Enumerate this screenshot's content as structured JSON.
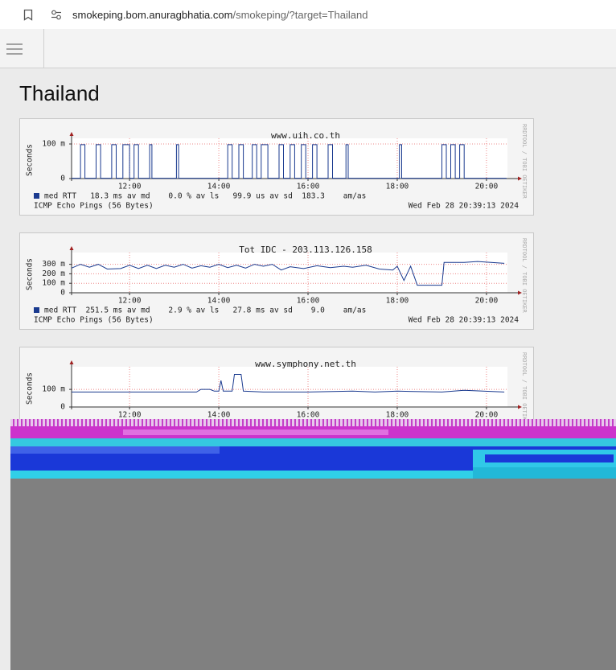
{
  "address": {
    "host": "smokeping.bom.anuragbhatia.com",
    "path": "/smokeping/?target=Thailand"
  },
  "heading": "Thailand",
  "graphs": [
    {
      "type": "line",
      "title": "www.uih.co.th",
      "ylabel": "Seconds",
      "color": "#1a3a8f",
      "grid": true,
      "ylim": [
        0,
        107
      ],
      "yticks": [
        0,
        {
          "value": 100,
          "label": "100 m"
        }
      ],
      "xlim": [
        10.7,
        20.47
      ],
      "xticks": [
        {
          "value": 12,
          "label": "12:00"
        },
        {
          "value": 14,
          "label": "14:00"
        },
        {
          "value": 16,
          "label": "16:00"
        },
        {
          "value": 18,
          "label": "18:00"
        },
        {
          "value": 20,
          "label": "20:00"
        }
      ],
      "x": [
        10.7,
        10.9,
        10.9,
        11.0,
        11.0,
        11.25,
        11.25,
        11.35,
        11.35,
        11.6,
        11.6,
        11.7,
        11.7,
        11.85,
        11.85,
        12.0,
        12.0,
        12.1,
        12.1,
        12.2,
        12.2,
        12.45,
        12.45,
        12.5,
        12.5,
        13.05,
        13.05,
        13.1,
        13.1,
        14.2,
        14.2,
        14.3,
        14.3,
        14.45,
        14.45,
        14.55,
        14.55,
        14.75,
        14.75,
        14.85,
        14.85,
        14.95,
        14.95,
        15.1,
        15.1,
        15.35,
        15.35,
        15.45,
        15.45,
        15.6,
        15.6,
        15.7,
        15.7,
        15.85,
        15.85,
        15.95,
        15.95,
        16.1,
        16.1,
        16.2,
        16.2,
        16.45,
        16.45,
        16.55,
        16.55,
        16.85,
        16.85,
        16.9,
        16.9,
        18.05,
        18.05,
        18.1,
        18.1,
        19.0,
        19.0,
        19.1,
        19.1,
        19.2,
        19.2,
        19.3,
        19.3,
        19.4,
        19.4,
        19.5,
        19.5,
        20.45
      ],
      "values": [
        1,
        1,
        98,
        98,
        1,
        1,
        98,
        98,
        1,
        1,
        98,
        98,
        1,
        1,
        98,
        98,
        1,
        1,
        98,
        98,
        1,
        1,
        98,
        98,
        1,
        1,
        98,
        98,
        1,
        1,
        98,
        98,
        1,
        1,
        98,
        98,
        1,
        1,
        98,
        98,
        1,
        1,
        98,
        98,
        1,
        1,
        98,
        98,
        1,
        1,
        98,
        98,
        1,
        1,
        98,
        98,
        1,
        1,
        98,
        98,
        1,
        1,
        98,
        98,
        1,
        1,
        98,
        98,
        1,
        1,
        98,
        98,
        1,
        1,
        98,
        98,
        1,
        1,
        98,
        98,
        1,
        1,
        98,
        98,
        1,
        1
      ],
      "legend": "med RTT   18.3 ms av md    0.0 % av ls   99.9 us av sd  183.3    am/as",
      "footer_left": "ICMP Echo Pings (56 Bytes)",
      "footer_right": "Wed Feb 28 20:39:13 2024",
      "watermark": "RRDTOOL / TOBI OETIKER"
    },
    {
      "type": "line",
      "title": "Tot IDC - 203.113.126.158",
      "ylabel": "Seconds",
      "color": "#1a3a8f",
      "grid": true,
      "ylim": [
        0,
        390
      ],
      "yticks": [
        0,
        {
          "value": 100,
          "label": "100 m"
        },
        {
          "value": 200,
          "label": "200 m"
        },
        {
          "value": 300,
          "label": "300 m"
        }
      ],
      "xlim": [
        10.7,
        20.47
      ],
      "xticks": [
        {
          "value": 12,
          "label": "12:00"
        },
        {
          "value": 14,
          "label": "14:00"
        },
        {
          "value": 16,
          "label": "16:00"
        },
        {
          "value": 18,
          "label": "18:00"
        },
        {
          "value": 20,
          "label": "20:00"
        }
      ],
      "x": [
        10.7,
        10.9,
        11.1,
        11.3,
        11.5,
        11.8,
        12.0,
        12.2,
        12.4,
        12.6,
        12.8,
        13.0,
        13.2,
        13.4,
        13.6,
        13.8,
        14.0,
        14.2,
        14.4,
        14.6,
        14.8,
        15.0,
        15.2,
        15.4,
        15.6,
        15.9,
        16.2,
        16.5,
        16.8,
        17.0,
        17.3,
        17.6,
        17.9,
        18.0,
        18.15,
        18.3,
        18.45,
        18.6,
        18.8,
        19.0,
        19.05,
        19.5,
        19.8,
        20.1,
        20.4
      ],
      "values": [
        260,
        300,
        270,
        300,
        250,
        255,
        290,
        255,
        290,
        255,
        290,
        270,
        300,
        260,
        285,
        270,
        300,
        265,
        290,
        260,
        300,
        280,
        300,
        240,
        275,
        255,
        285,
        265,
        280,
        270,
        290,
        250,
        240,
        280,
        130,
        280,
        80,
        80,
        80,
        80,
        320,
        320,
        330,
        320,
        310
      ],
      "legend": "med RTT  251.5 ms av md    2.9 % av ls   27.8 ms av sd    9.0    am/as",
      "footer_left": "ICMP Echo Pings (56 Bytes)",
      "footer_right": "Wed Feb 28 20:39:13 2024",
      "watermark": "RRDTOOL / TOBI OETIKER"
    },
    {
      "type": "line",
      "title": "www.symphony.net.th",
      "ylabel": "Seconds",
      "color": "#1a3a8f",
      "grid": true,
      "ylim": [
        0,
        210
      ],
      "yticks": [
        0,
        {
          "value": 100,
          "label": "100 m"
        }
      ],
      "xlim": [
        10.7,
        20.47
      ],
      "xticks": [
        {
          "value": 12,
          "label": "12:00"
        },
        {
          "value": 14,
          "label": "14:00"
        },
        {
          "value": 16,
          "label": "16:00"
        },
        {
          "value": 18,
          "label": "18:00"
        },
        {
          "value": 20,
          "label": "20:00"
        }
      ],
      "x": [
        10.7,
        12.0,
        13.5,
        13.6,
        13.8,
        13.9,
        14.0,
        14.05,
        14.1,
        14.3,
        14.35,
        14.5,
        14.55,
        15.0,
        16.0,
        17.0,
        17.5,
        18.0,
        19.0,
        19.5,
        20.4
      ],
      "values": [
        85,
        85,
        85,
        100,
        100,
        90,
        90,
        150,
        90,
        90,
        185,
        185,
        90,
        85,
        85,
        90,
        85,
        90,
        85,
        95,
        85
      ],
      "watermark": "RRDTOOL / TOBI OETIKER"
    }
  ]
}
